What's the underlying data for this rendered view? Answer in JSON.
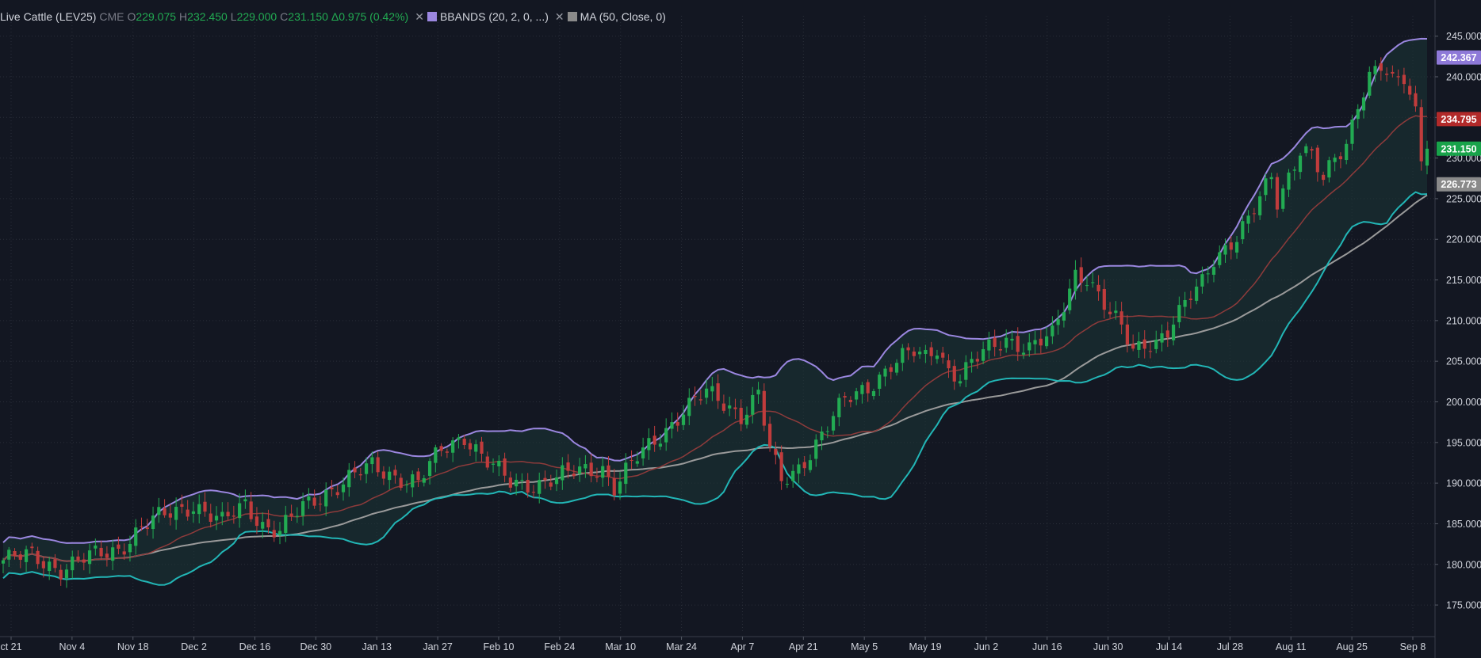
{
  "legend": {
    "symbol": "Live Cattle (LEV25)",
    "exchange": "CME",
    "open_label": "O",
    "open": "229.075",
    "high_label": "H",
    "high": "232.450",
    "low_label": "L",
    "low": "229.000",
    "close_label": "C",
    "close": "231.150",
    "change": "Δ0.975 (0.42%)",
    "indicators": [
      {
        "name": "BBANDS (20, 2, 0, ...)",
        "color": "#9b87e0"
      },
      {
        "name": "MA (50, Close, 0)",
        "color": "#8a8a8a"
      }
    ]
  },
  "price_tags": [
    {
      "value": "242.367",
      "bg": "#8e79d8",
      "fg": "#ffffff"
    },
    {
      "value": "234.795",
      "bg": "#b22a2a",
      "fg": "#ffffff"
    },
    {
      "value": "231.150",
      "bg": "#18a34a",
      "fg": "#ffffff"
    },
    {
      "value": "226.773",
      "bg": "#8a8a8a",
      "fg": "#ffffff"
    }
  ],
  "colors": {
    "background": "#131722",
    "up": "#22ab52",
    "down": "#c03c3c",
    "bb_upper": "#9b87e0",
    "bb_lower": "#22b6b6",
    "bb_mid": "#8e3b3b",
    "ma": "#9a9a9a",
    "fill": "#1b3636",
    "grid": "#2a2e39",
    "axis_text": "#d1d4dc"
  },
  "chart_data": {
    "type": "candlestick",
    "title": "Live Cattle (LEV25)",
    "y_ticks": [
      "245.000",
      "240.000",
      "235.000",
      "230.000",
      "225.000",
      "220.000",
      "215.000",
      "210.000",
      "205.000",
      "200.000",
      "195.000",
      "190.000",
      "185.000",
      "180.000",
      "175.000"
    ],
    "x_ticks": [
      "ct 21",
      "Nov 4",
      "Nov 18",
      "Dec 2",
      "Dec 16",
      "Dec 30",
      "Jan 13",
      "Jan 27",
      "Feb 10",
      "Feb 24",
      "Mar 10",
      "Mar 24",
      "Apr 7",
      "Apr 21",
      "May 5",
      "May 19",
      "Jun 2",
      "Jun 16",
      "Jun 30",
      "Jul 14",
      "Jul 28",
      "Aug 11",
      "Aug 25",
      "Sep 8"
    ],
    "ylim": [
      171.5,
      247.5
    ],
    "close_anchors": [
      [
        0,
        180.5
      ],
      [
        5,
        181.0
      ],
      [
        10,
        179.5
      ],
      [
        15,
        180.8
      ],
      [
        20,
        182.0
      ],
      [
        24,
        184.5
      ],
      [
        28,
        186.0
      ],
      [
        33,
        187.5
      ],
      [
        38,
        185.0
      ],
      [
        42,
        187.5
      ],
      [
        45,
        185.0
      ],
      [
        48,
        184.0
      ],
      [
        52,
        187.0
      ],
      [
        56,
        189.0
      ],
      [
        60,
        190.5
      ],
      [
        64,
        192.0
      ],
      [
        68,
        191.0
      ],
      [
        72,
        190.0
      ],
      [
        76,
        194.0
      ],
      [
        80,
        196.0
      ],
      [
        84,
        192.5
      ],
      [
        88,
        190.0
      ],
      [
        92,
        190.0
      ],
      [
        96,
        190.5
      ],
      [
        100,
        191.5
      ],
      [
        104,
        192.0
      ],
      [
        106,
        189.5
      ],
      [
        110,
        193.0
      ],
      [
        114,
        196.0
      ],
      [
        118,
        199.0
      ],
      [
        122,
        201.0
      ],
      [
        126,
        199.5
      ],
      [
        128,
        198.5
      ],
      [
        131,
        201.0
      ],
      [
        133,
        194.0
      ],
      [
        135,
        190.0
      ],
      [
        138,
        192.0
      ],
      [
        142,
        196.0
      ],
      [
        146,
        200.0
      ],
      [
        150,
        202.0
      ],
      [
        154,
        204.5
      ],
      [
        158,
        206.0
      ],
      [
        160,
        205.5
      ],
      [
        162,
        207.0
      ],
      [
        164,
        204.0
      ],
      [
        166,
        203.0
      ],
      [
        170,
        206.0
      ],
      [
        174,
        208.0
      ],
      [
        178,
        206.5
      ],
      [
        182,
        208.0
      ],
      [
        184,
        212.0
      ],
      [
        186,
        216.0
      ],
      [
        188,
        215.5
      ],
      [
        190,
        213.0
      ],
      [
        192,
        210.5
      ],
      [
        194,
        209.0
      ],
      [
        196,
        206.5
      ],
      [
        198,
        207.5
      ],
      [
        200,
        207.5
      ],
      [
        202,
        208.5
      ],
      [
        204,
        210.5
      ],
      [
        206,
        213.0
      ],
      [
        208,
        215.0
      ],
      [
        210,
        218.0
      ],
      [
        212,
        219.0
      ],
      [
        214,
        220.0
      ],
      [
        216,
        222.0
      ],
      [
        218,
        225.0
      ],
      [
        220,
        228.0
      ],
      [
        221,
        225.0
      ],
      [
        223,
        228.0
      ],
      [
        225,
        231.0
      ],
      [
        227,
        230.0
      ],
      [
        229,
        227.0
      ],
      [
        231,
        230.0
      ],
      [
        233,
        232.0
      ],
      [
        235,
        237.0
      ],
      [
        237,
        240.0
      ],
      [
        239,
        241.0
      ],
      [
        241,
        239.0
      ],
      [
        243,
        240.0
      ],
      [
        245,
        236.0
      ],
      [
        247,
        229.6
      ]
    ],
    "last_close": 231.15,
    "bbands": {
      "period": 20,
      "stddev": 2
    },
    "ma": {
      "period": 50,
      "source": "Close"
    }
  }
}
